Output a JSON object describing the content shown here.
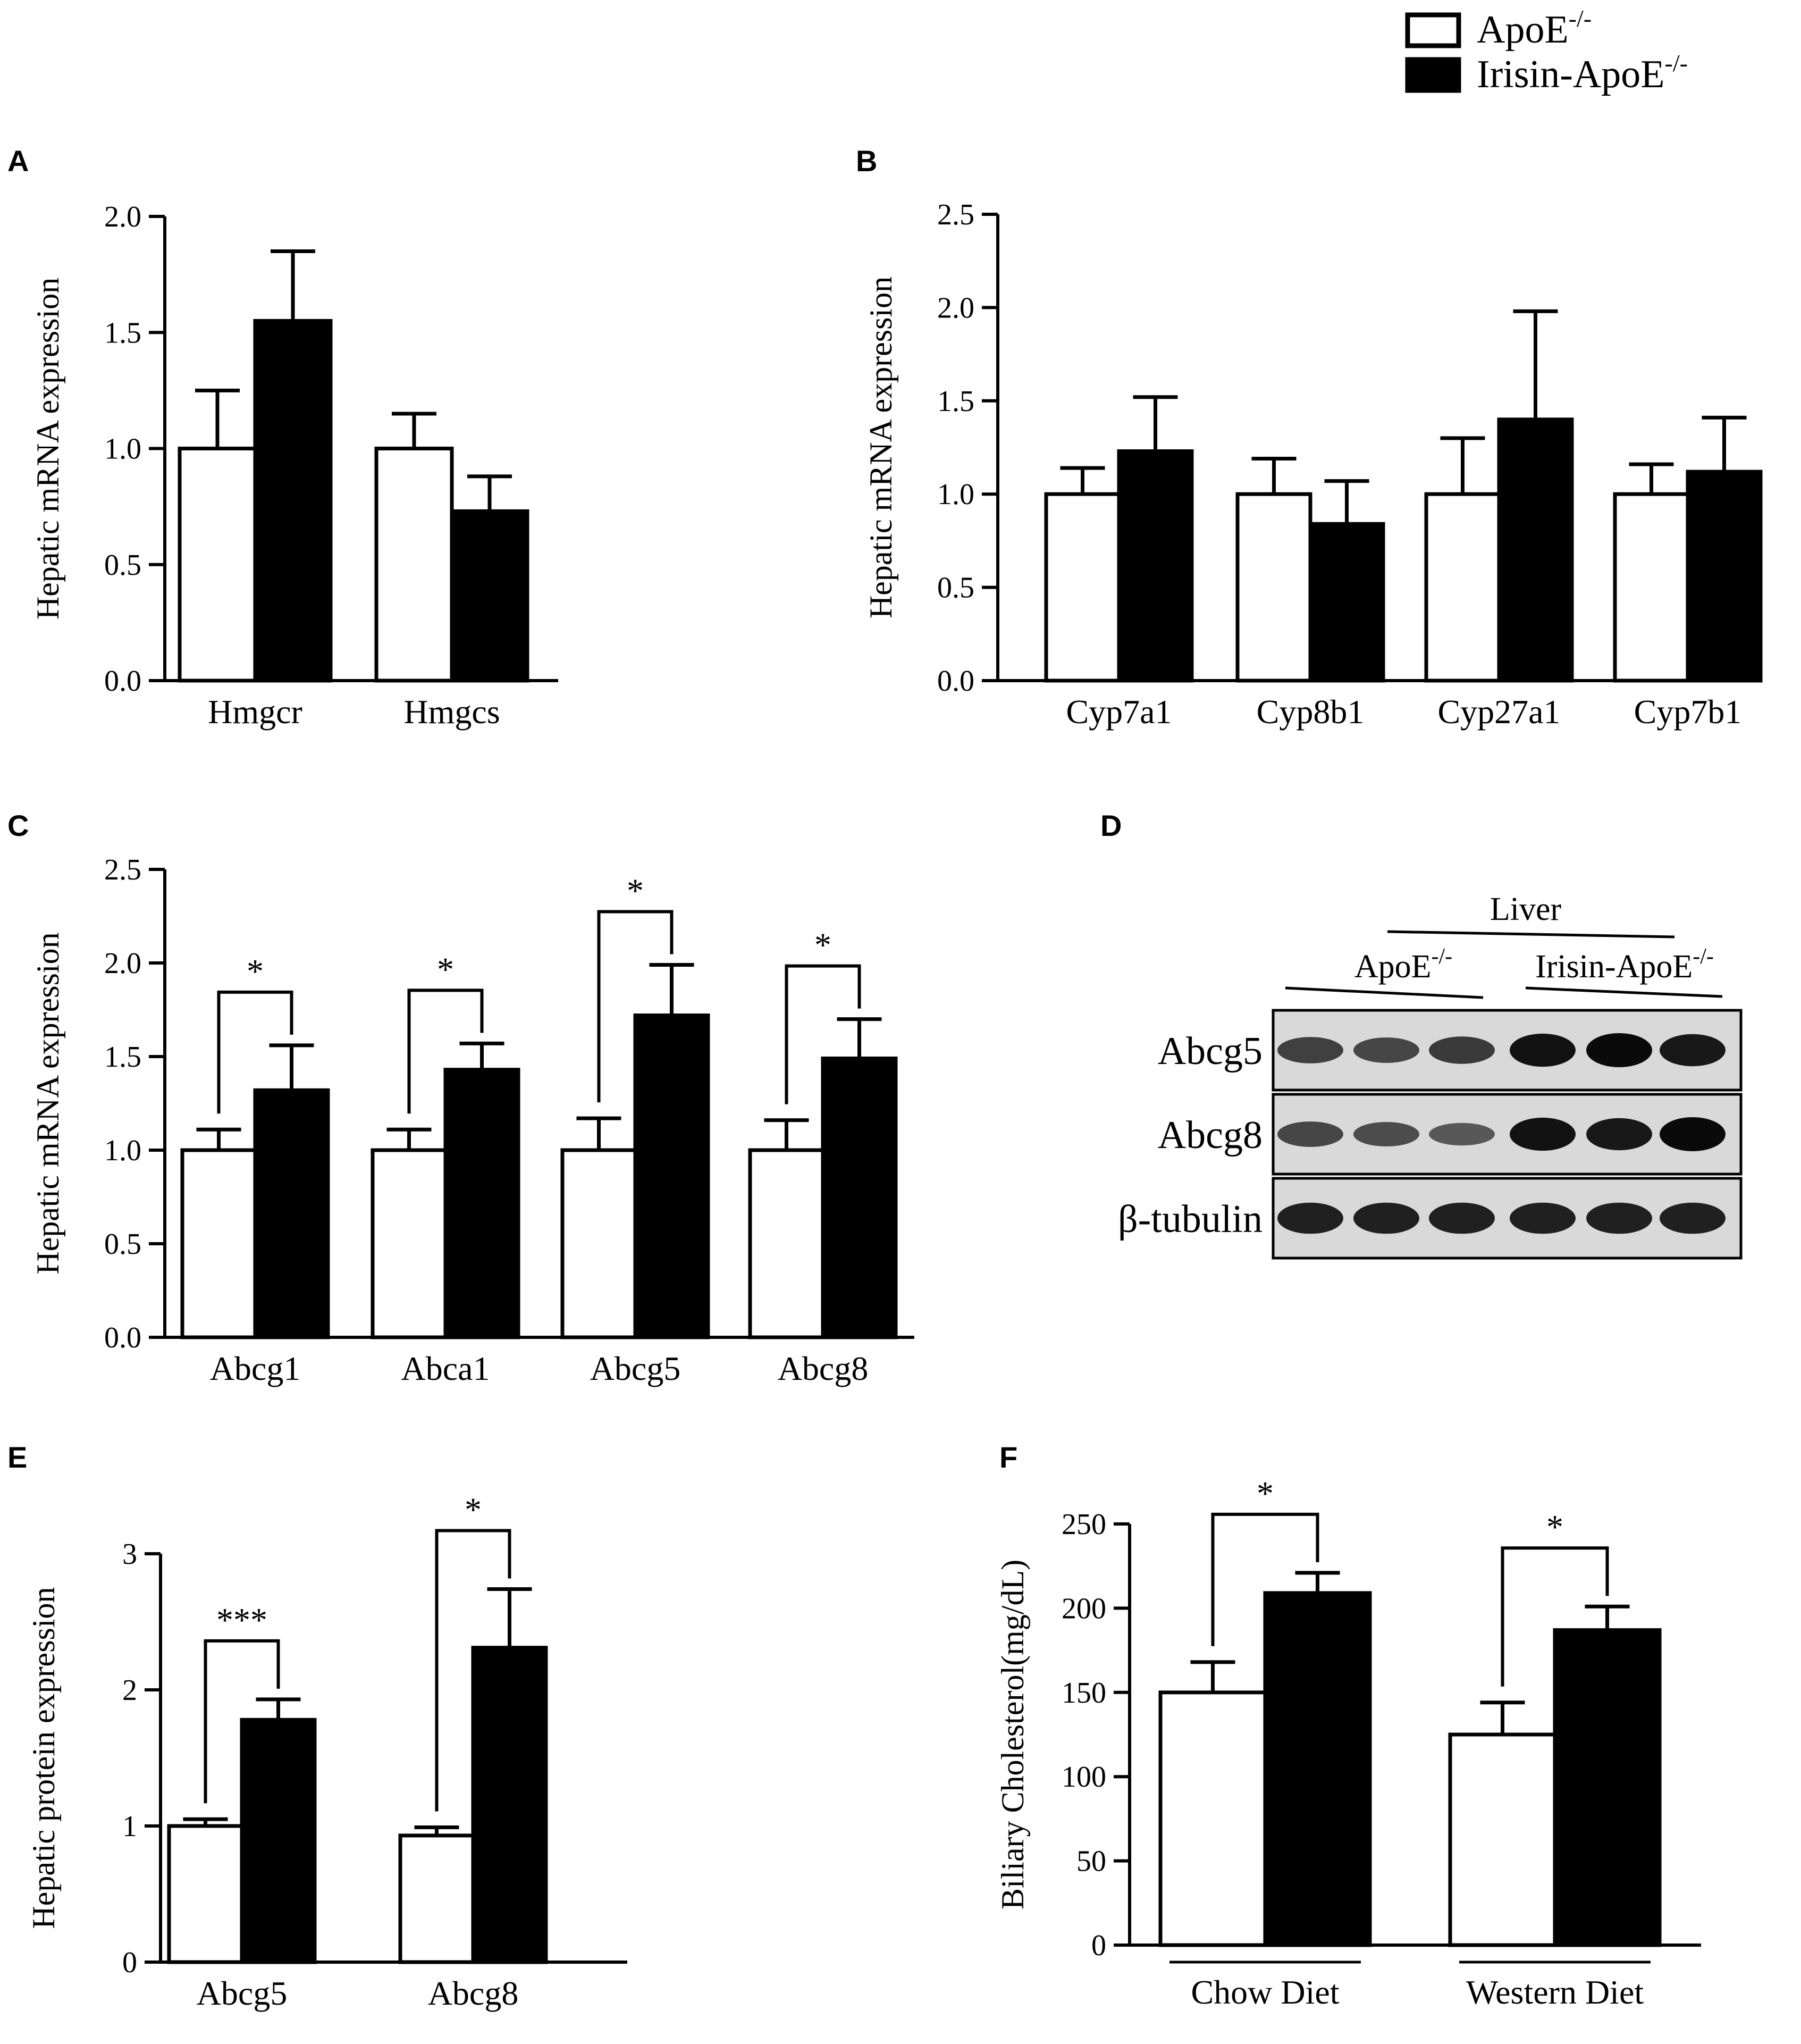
{
  "legend": {
    "series1": "ApoE",
    "series1_sup": "-/-",
    "series2": "Irisin-ApoE",
    "series2_sup": "-/-"
  },
  "colors": {
    "series1": "#ffffff",
    "series2": "#000000",
    "stroke": "#000000"
  },
  "chart_data": [
    {
      "panel": "A",
      "type": "bar",
      "ylabel": "Hepatic mRNA expression",
      "categories": [
        "Hmgcr",
        "Hmgcs"
      ],
      "yticks": [
        "0.0",
        "0.5",
        "1.0",
        "1.5",
        "2.0"
      ],
      "ylim": [
        0,
        2.0
      ],
      "series": [
        {
          "name": "ApoE-/-",
          "values": [
            1.0,
            1.0
          ],
          "errors": [
            0.25,
            0.15
          ]
        },
        {
          "name": "Irisin-ApoE-/-",
          "values": [
            1.55,
            0.73
          ],
          "errors": [
            0.3,
            0.15
          ]
        }
      ],
      "significance": [
        "",
        ""
      ]
    },
    {
      "panel": "B",
      "type": "bar",
      "ylabel": "Hepatic mRNA expression",
      "categories": [
        "Cyp7a1",
        "Cyp8b1",
        "Cyp27a1",
        "Cyp7b1"
      ],
      "yticks": [
        "0.0",
        "0.5",
        "1.0",
        "1.5",
        "2.0",
        "2.5"
      ],
      "ylim": [
        0,
        2.5
      ],
      "series": [
        {
          "name": "ApoE-/-",
          "values": [
            1.0,
            1.0,
            1.0,
            1.0
          ],
          "errors": [
            0.14,
            0.19,
            0.3,
            0.16
          ]
        },
        {
          "name": "Irisin-ApoE-/-",
          "values": [
            1.23,
            0.84,
            1.4,
            1.12
          ],
          "errors": [
            0.29,
            0.23,
            0.58,
            0.29
          ]
        }
      ],
      "significance": [
        "",
        "",
        "",
        ""
      ]
    },
    {
      "panel": "C",
      "type": "bar",
      "ylabel": "Hepatic mRNA expression",
      "categories": [
        "Abcg1",
        "Abca1",
        "Abcg5",
        "Abcg8"
      ],
      "yticks": [
        "0.0",
        "0.5",
        "1.0",
        "1.5",
        "2.0",
        "2.5"
      ],
      "ylim": [
        0,
        2.5
      ],
      "series": [
        {
          "name": "ApoE-/-",
          "values": [
            1.0,
            1.0,
            1.0,
            1.0
          ],
          "errors": [
            0.11,
            0.11,
            0.17,
            0.16
          ]
        },
        {
          "name": "Irisin-ApoE-/-",
          "values": [
            1.32,
            1.43,
            1.72,
            1.49
          ],
          "errors": [
            0.24,
            0.14,
            0.27,
            0.21
          ]
        }
      ],
      "significance": [
        "*",
        "*",
        "*",
        "*"
      ]
    },
    {
      "panel": "E",
      "type": "bar",
      "ylabel": "Hepatic protein expression",
      "categories": [
        "Abcg5",
        "Abcg8"
      ],
      "yticks": [
        "0",
        "1",
        "2",
        "3"
      ],
      "ylim": [
        0,
        3
      ],
      "series": [
        {
          "name": "ApoE-/-",
          "values": [
            1.0,
            0.93
          ],
          "errors": [
            0.05,
            0.06
          ]
        },
        {
          "name": "Irisin-ApoE-/-",
          "values": [
            1.78,
            2.31
          ],
          "errors": [
            0.15,
            0.43
          ]
        }
      ],
      "significance": [
        "***",
        "*"
      ]
    },
    {
      "panel": "F",
      "type": "bar",
      "ylabel": "Biliary Cholesterol(mg/dL)",
      "categories": [
        "Chow Diet",
        "Western Diet"
      ],
      "yticks": [
        "0",
        "50",
        "100",
        "150",
        "200",
        "250"
      ],
      "ylim": [
        0,
        250
      ],
      "series": [
        {
          "name": "ApoE-/-",
          "values": [
            150,
            125
          ],
          "errors": [
            18,
            19
          ]
        },
        {
          "name": "Irisin-ApoE-/-",
          "values": [
            209,
            187
          ],
          "errors": [
            12,
            14
          ]
        }
      ],
      "significance": [
        "*",
        "*"
      ]
    }
  ],
  "blot": {
    "panel": "D",
    "tissue": "Liver",
    "group1": "ApoE",
    "group1_sup": "-/-",
    "group2": "Irisin-ApoE",
    "group2_sup": "-/-",
    "rows": [
      {
        "label": "Abcg5",
        "intensities": [
          0.6,
          0.55,
          0.65,
          0.95,
          1.0,
          0.9
        ]
      },
      {
        "label": "Abcg8",
        "intensities": [
          0.55,
          0.5,
          0.4,
          0.95,
          0.9,
          1.0
        ]
      },
      {
        "label": "β-tubulin",
        "intensities": [
          0.85,
          0.85,
          0.85,
          0.85,
          0.85,
          0.85
        ]
      }
    ]
  }
}
